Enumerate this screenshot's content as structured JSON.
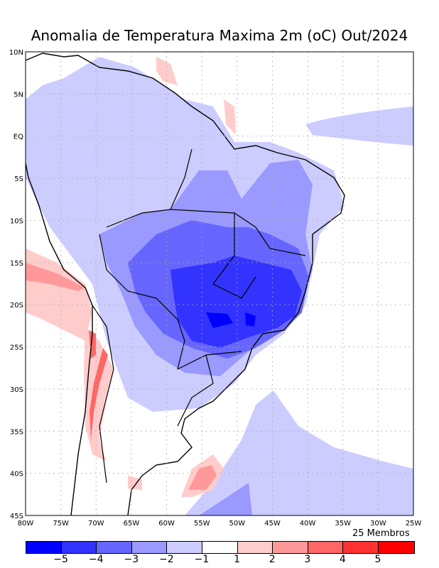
{
  "title": "Anomalia de Temperatura Maxima 2m (oC) Out/2024",
  "lat_labels": [
    "10N",
    "5N",
    "EQ",
    "5S",
    "10S",
    "15S",
    "20S",
    "25S",
    "30S",
    "35S",
    "40S",
    "45S"
  ],
  "lon_labels": [
    "80W",
    "75W",
    "70W",
    "65W",
    "60W",
    "55W",
    "50W",
    "45W",
    "40W",
    "35W",
    "30W",
    "25W"
  ],
  "members": "25 Membros",
  "colorbar": {
    "colors": [
      "#0000ff",
      "#3333ff",
      "#6666ff",
      "#9999ff",
      "#ccccff",
      "#ffffff",
      "#ffcccc",
      "#ff9999",
      "#ff6666",
      "#ff3333",
      "#ff0000"
    ],
    "ticks": [
      "−5",
      "−4",
      "−3",
      "−2",
      "−1",
      "1",
      "2",
      "3",
      "4",
      "5"
    ]
  }
}
